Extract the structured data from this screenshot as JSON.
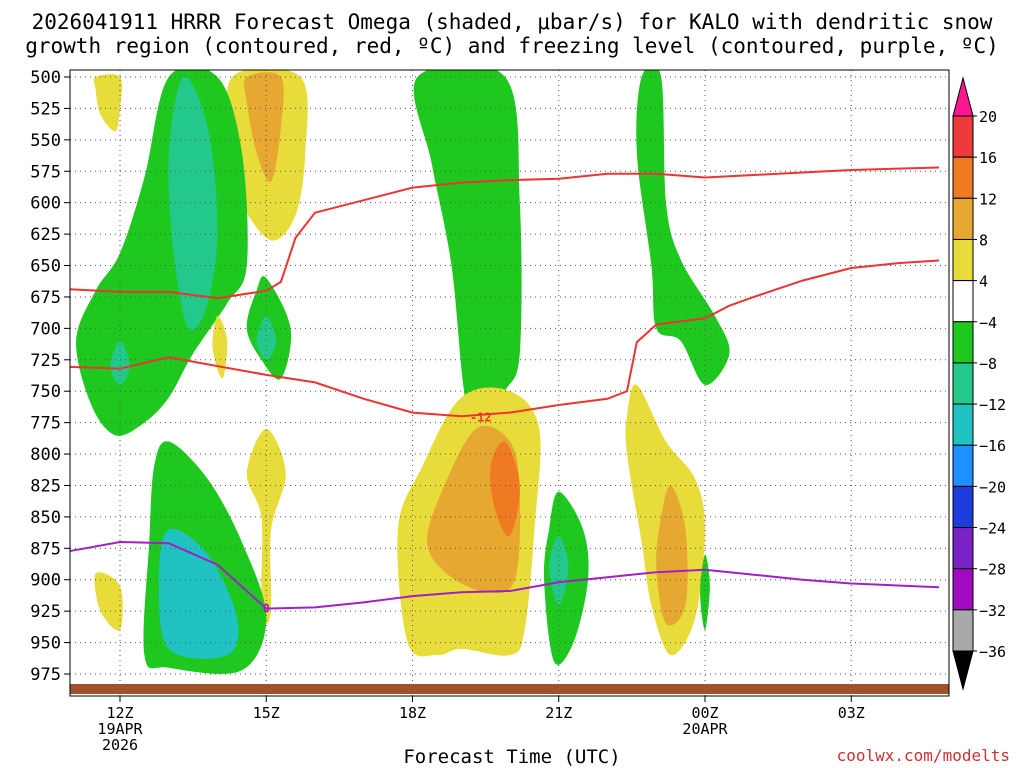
{
  "title_line1": "2026041911 HRRR Forecast Omega (shaded, μbar/s) for KALO with dendritic snow",
  "title_line2": "growth region (contoured, red, ºC) and freezing level (contoured, purple, ºC)",
  "xlabel": "Forecast Time (UTC)",
  "credit": "coolwx.com/modelts",
  "chart_data": {
    "type": "heatmap",
    "title": "2026041911 HRRR Forecast Omega (shaded, μbar/s) for KALO with dendritic snow growth region (contoured, red, ºC) and freezing level (contoured, purple, ºC)",
    "xlabel": "Forecast Time (UTC)",
    "ylabel": "",
    "y_axis": "pressure (mb), inverted",
    "ylim": [
      985,
      500
    ],
    "xlim_hours": [
      10.5,
      28.8
    ],
    "yticks": [
      500,
      525,
      550,
      575,
      600,
      625,
      650,
      675,
      700,
      725,
      750,
      775,
      800,
      825,
      850,
      875,
      900,
      925,
      950,
      975
    ],
    "xticks": [
      {
        "hour": 12,
        "labels": [
          "12Z",
          "19APR",
          "2026"
        ]
      },
      {
        "hour": 15,
        "labels": [
          "15Z"
        ]
      },
      {
        "hour": 18,
        "labels": [
          "18Z"
        ]
      },
      {
        "hour": 21,
        "labels": [
          "21Z"
        ]
      },
      {
        "hour": 24,
        "labels": [
          "00Z",
          "20APR"
        ]
      },
      {
        "hour": 27,
        "labels": [
          "03Z"
        ]
      }
    ],
    "grid": true,
    "colorbar": {
      "labels": [
        "20",
        "16",
        "12",
        "8",
        "4",
        "−4",
        "−8",
        "−12",
        "−16",
        "−20",
        "−24",
        "−28",
        "−32",
        "−36"
      ],
      "colors": [
        "#ff1493",
        "#ee3a3a",
        "#f07a22",
        "#e7a832",
        "#e8dc3a",
        "#ffffff",
        "#1ec81e",
        "#22c98a",
        "#20c2c2",
        "#1e90ff",
        "#1e3cdc",
        "#7a22c8",
        "#a00ac0",
        "#a8a8a8",
        "#000000"
      ]
    },
    "contours": [
      {
        "color": "#ee3333",
        "label": "-12",
        "points": [
          [
            10.5,
            668
          ],
          [
            12,
            671
          ],
          [
            13,
            671
          ],
          [
            14,
            676
          ],
          [
            15,
            670
          ],
          [
            15.3,
            663
          ],
          [
            15.6,
            628
          ],
          [
            16,
            608
          ],
          [
            17,
            598
          ],
          [
            18,
            588
          ],
          [
            19,
            584
          ],
          [
            20,
            582
          ],
          [
            21,
            581
          ],
          [
            22,
            577
          ],
          [
            23,
            577
          ],
          [
            24,
            580
          ],
          [
            25,
            578
          ],
          [
            26,
            576
          ],
          [
            27,
            574
          ],
          [
            28.8,
            572
          ]
        ]
      },
      {
        "color": "#ee3333",
        "label": "-12",
        "points": [
          [
            10.5,
            730
          ],
          [
            12,
            732
          ],
          [
            13,
            723
          ],
          [
            14,
            730
          ],
          [
            15,
            737
          ],
          [
            16,
            743
          ],
          [
            17,
            756
          ],
          [
            18,
            767
          ],
          [
            19,
            770
          ],
          [
            20,
            767
          ],
          [
            21,
            761
          ],
          [
            22,
            756
          ],
          [
            22.4,
            750
          ],
          [
            22.6,
            711
          ],
          [
            23,
            697
          ],
          [
            24,
            692
          ],
          [
            24.5,
            682
          ],
          [
            25,
            675
          ],
          [
            26,
            662
          ],
          [
            27,
            652
          ],
          [
            28,
            648
          ],
          [
            28.8,
            646
          ]
        ]
      },
      {
        "color": "#a020c8",
        "label": "0",
        "points": [
          [
            10.5,
            880
          ],
          [
            11,
            877
          ],
          [
            12,
            870
          ],
          [
            13,
            871
          ],
          [
            14,
            888
          ],
          [
            15,
            923
          ],
          [
            16,
            922
          ],
          [
            17,
            918
          ],
          [
            18,
            913
          ],
          [
            19,
            910
          ],
          [
            20,
            909
          ],
          [
            21,
            902
          ],
          [
            22,
            898
          ],
          [
            23,
            894
          ],
          [
            24,
            892
          ],
          [
            25,
            896
          ],
          [
            26,
            900
          ],
          [
            27,
            903
          ],
          [
            28.8,
            906
          ]
        ]
      }
    ],
    "shaded_regions": [
      {
        "value": "4 to 8",
        "color": "#e8dc3a",
        "points": [
          [
            11.5,
            500
          ],
          [
            12,
            500
          ],
          [
            12,
            525
          ],
          [
            11.9,
            543
          ],
          [
            11.6,
            530
          ],
          [
            11.5,
            510
          ]
        ]
      },
      {
        "value": "4 to 8",
        "color": "#e8dc3a",
        "points": [
          [
            14.3,
            500
          ],
          [
            15.7,
            500
          ],
          [
            15.8,
            560
          ],
          [
            15.6,
            610
          ],
          [
            15.1,
            630
          ],
          [
            14.5,
            600
          ],
          [
            14.3,
            560
          ]
        ]
      },
      {
        "value": "8 to 12",
        "color": "#e7a832",
        "points": [
          [
            14.6,
            500
          ],
          [
            15.3,
            500
          ],
          [
            15.3,
            540
          ],
          [
            15.1,
            583
          ],
          [
            14.8,
            560
          ],
          [
            14.6,
            520
          ]
        ]
      },
      {
        "value": "-4 to -8",
        "color": "#1ec81e",
        "points": [
          [
            13,
            500
          ],
          [
            14,
            500
          ],
          [
            14.5,
            560
          ],
          [
            14.6,
            650
          ],
          [
            14.2,
            680
          ],
          [
            13.5,
            720
          ],
          [
            13,
            755
          ],
          [
            12.5,
            775
          ],
          [
            11.9,
            785
          ],
          [
            11.4,
            760
          ],
          [
            11.1,
            710
          ],
          [
            11.5,
            670
          ],
          [
            12,
            640
          ],
          [
            12.5,
            580
          ]
        ]
      },
      {
        "value": "-8 to -12",
        "color": "#22c98a",
        "points": [
          [
            13.3,
            500
          ],
          [
            13.8,
            540
          ],
          [
            14,
            620
          ],
          [
            13.8,
            680
          ],
          [
            13.4,
            700
          ],
          [
            13.1,
            640
          ],
          [
            13,
            560
          ]
        ]
      },
      {
        "value": "-8 to -12",
        "color": "#22c98a",
        "points": [
          [
            12,
            710
          ],
          [
            12.2,
            730
          ],
          [
            12,
            745
          ],
          [
            11.8,
            730
          ]
        ]
      },
      {
        "value": "-4 to -8",
        "color": "#1ec81e",
        "points": [
          [
            15,
            660
          ],
          [
            15.5,
            700
          ],
          [
            15.3,
            740
          ],
          [
            14.9,
            725
          ],
          [
            14.6,
            700
          ],
          [
            14.8,
            670
          ]
        ]
      },
      {
        "value": "-8 to -12",
        "color": "#22c98a",
        "points": [
          [
            15,
            690
          ],
          [
            15.2,
            710
          ],
          [
            15,
            725
          ],
          [
            14.8,
            710
          ]
        ]
      },
      {
        "value": "4 to 8",
        "color": "#e8dc3a",
        "points": [
          [
            14,
            690
          ],
          [
            14.2,
            710
          ],
          [
            14.1,
            740
          ],
          [
            13.9,
            715
          ]
        ]
      },
      {
        "value": "4 to 8",
        "color": "#e8dc3a",
        "points": [
          [
            15,
            780
          ],
          [
            15.4,
            815
          ],
          [
            15.1,
            860
          ],
          [
            15.1,
            920
          ],
          [
            15,
            935
          ],
          [
            14.9,
            910
          ],
          [
            14.9,
            850
          ],
          [
            14.6,
            815
          ]
        ]
      },
      {
        "value": "4 to 8",
        "color": "#e8dc3a",
        "points": [
          [
            11.5,
            895
          ],
          [
            12,
            905
          ],
          [
            12,
            940
          ],
          [
            11.6,
            925
          ]
        ]
      },
      {
        "value": "-4 to -8",
        "color": "#1ec81e",
        "points": [
          [
            13,
            790
          ],
          [
            13.8,
            820
          ],
          [
            14.5,
            870
          ],
          [
            15,
            930
          ],
          [
            14.5,
            972
          ],
          [
            13,
            970
          ],
          [
            12.5,
            960
          ],
          [
            12.6,
            870
          ],
          [
            12.7,
            810
          ]
        ]
      },
      {
        "value": "-12 to -16",
        "color": "#20c2c2",
        "points": [
          [
            13,
            860
          ],
          [
            13.8,
            880
          ],
          [
            14.4,
            930
          ],
          [
            14.2,
            960
          ],
          [
            13,
            955
          ],
          [
            12.8,
            900
          ]
        ]
      },
      {
        "value": "-4 to -8",
        "color": "#1ec81e",
        "points": [
          [
            18.1,
            500
          ],
          [
            19.9,
            500
          ],
          [
            20.2,
            600
          ],
          [
            20.2,
            720
          ],
          [
            19.9,
            750
          ],
          [
            19.5,
            780
          ],
          [
            19.1,
            760
          ],
          [
            18.8,
            650
          ],
          [
            18.4,
            570
          ]
        ]
      },
      {
        "value": "4 to 8",
        "color": "#e8dc3a",
        "points": [
          [
            19,
            755
          ],
          [
            20,
            750
          ],
          [
            20.6,
            780
          ],
          [
            20.5,
            860
          ],
          [
            20.3,
            940
          ],
          [
            20,
            960
          ],
          [
            19,
            955
          ],
          [
            18.5,
            960
          ],
          [
            17.9,
            950
          ],
          [
            17.7,
            860
          ],
          [
            18.2,
            810
          ]
        ]
      },
      {
        "value": "8 to 12",
        "color": "#e7a832",
        "points": [
          [
            19.3,
            780
          ],
          [
            20,
            790
          ],
          [
            20.2,
            830
          ],
          [
            20.1,
            900
          ],
          [
            19.5,
            910
          ],
          [
            18.7,
            895
          ],
          [
            18.3,
            870
          ],
          [
            18.6,
            830
          ]
        ]
      },
      {
        "value": "12 to 16",
        "color": "#f07a22",
        "points": [
          [
            19.9,
            790
          ],
          [
            20.2,
            825
          ],
          [
            20,
            865
          ],
          [
            19.7,
            845
          ],
          [
            19.6,
            810
          ]
        ]
      },
      {
        "value": "-4 to -8",
        "color": "#1ec81e",
        "points": [
          [
            21,
            830
          ],
          [
            21.5,
            860
          ],
          [
            21.6,
            900
          ],
          [
            21.3,
            950
          ],
          [
            20.9,
            965
          ],
          [
            20.7,
            900
          ],
          [
            20.8,
            860
          ]
        ]
      },
      {
        "value": "-8 to -12",
        "color": "#22c98a",
        "points": [
          [
            21,
            865
          ],
          [
            21.2,
            890
          ],
          [
            21,
            920
          ],
          [
            20.8,
            890
          ]
        ]
      },
      {
        "value": "-4 to -8",
        "color": "#1ec81e",
        "points": [
          [
            22.7,
            500
          ],
          [
            23.1,
            500
          ],
          [
            23.2,
            600
          ],
          [
            23.5,
            645
          ],
          [
            24.2,
            690
          ],
          [
            24.5,
            720
          ],
          [
            24,
            745
          ],
          [
            23.5,
            710
          ],
          [
            23,
            700
          ],
          [
            22.9,
            650
          ],
          [
            22.6,
            560
          ]
        ]
      },
      {
        "value": "4 to 8",
        "color": "#e8dc3a",
        "points": [
          [
            22.6,
            745
          ],
          [
            23.2,
            790
          ],
          [
            23.8,
            820
          ],
          [
            24,
            860
          ],
          [
            23.8,
            930
          ],
          [
            23.3,
            960
          ],
          [
            22.9,
            920
          ],
          [
            22.7,
            870
          ],
          [
            22.4,
            800
          ],
          [
            22.4,
            770
          ]
        ]
      },
      {
        "value": "8 to 12",
        "color": "#e7a832",
        "points": [
          [
            23.3,
            825
          ],
          [
            23.6,
            860
          ],
          [
            23.6,
            920
          ],
          [
            23.2,
            935
          ],
          [
            23,
            890
          ],
          [
            23.1,
            850
          ]
        ]
      },
      {
        "value": "-4 to -8",
        "color": "#1ec81e",
        "points": [
          [
            24,
            880
          ],
          [
            24.1,
            905
          ],
          [
            24,
            940
          ],
          [
            23.9,
            910
          ]
        ]
      }
    ],
    "surface": {
      "color": "#a0522d",
      "pressure": 978
    }
  }
}
